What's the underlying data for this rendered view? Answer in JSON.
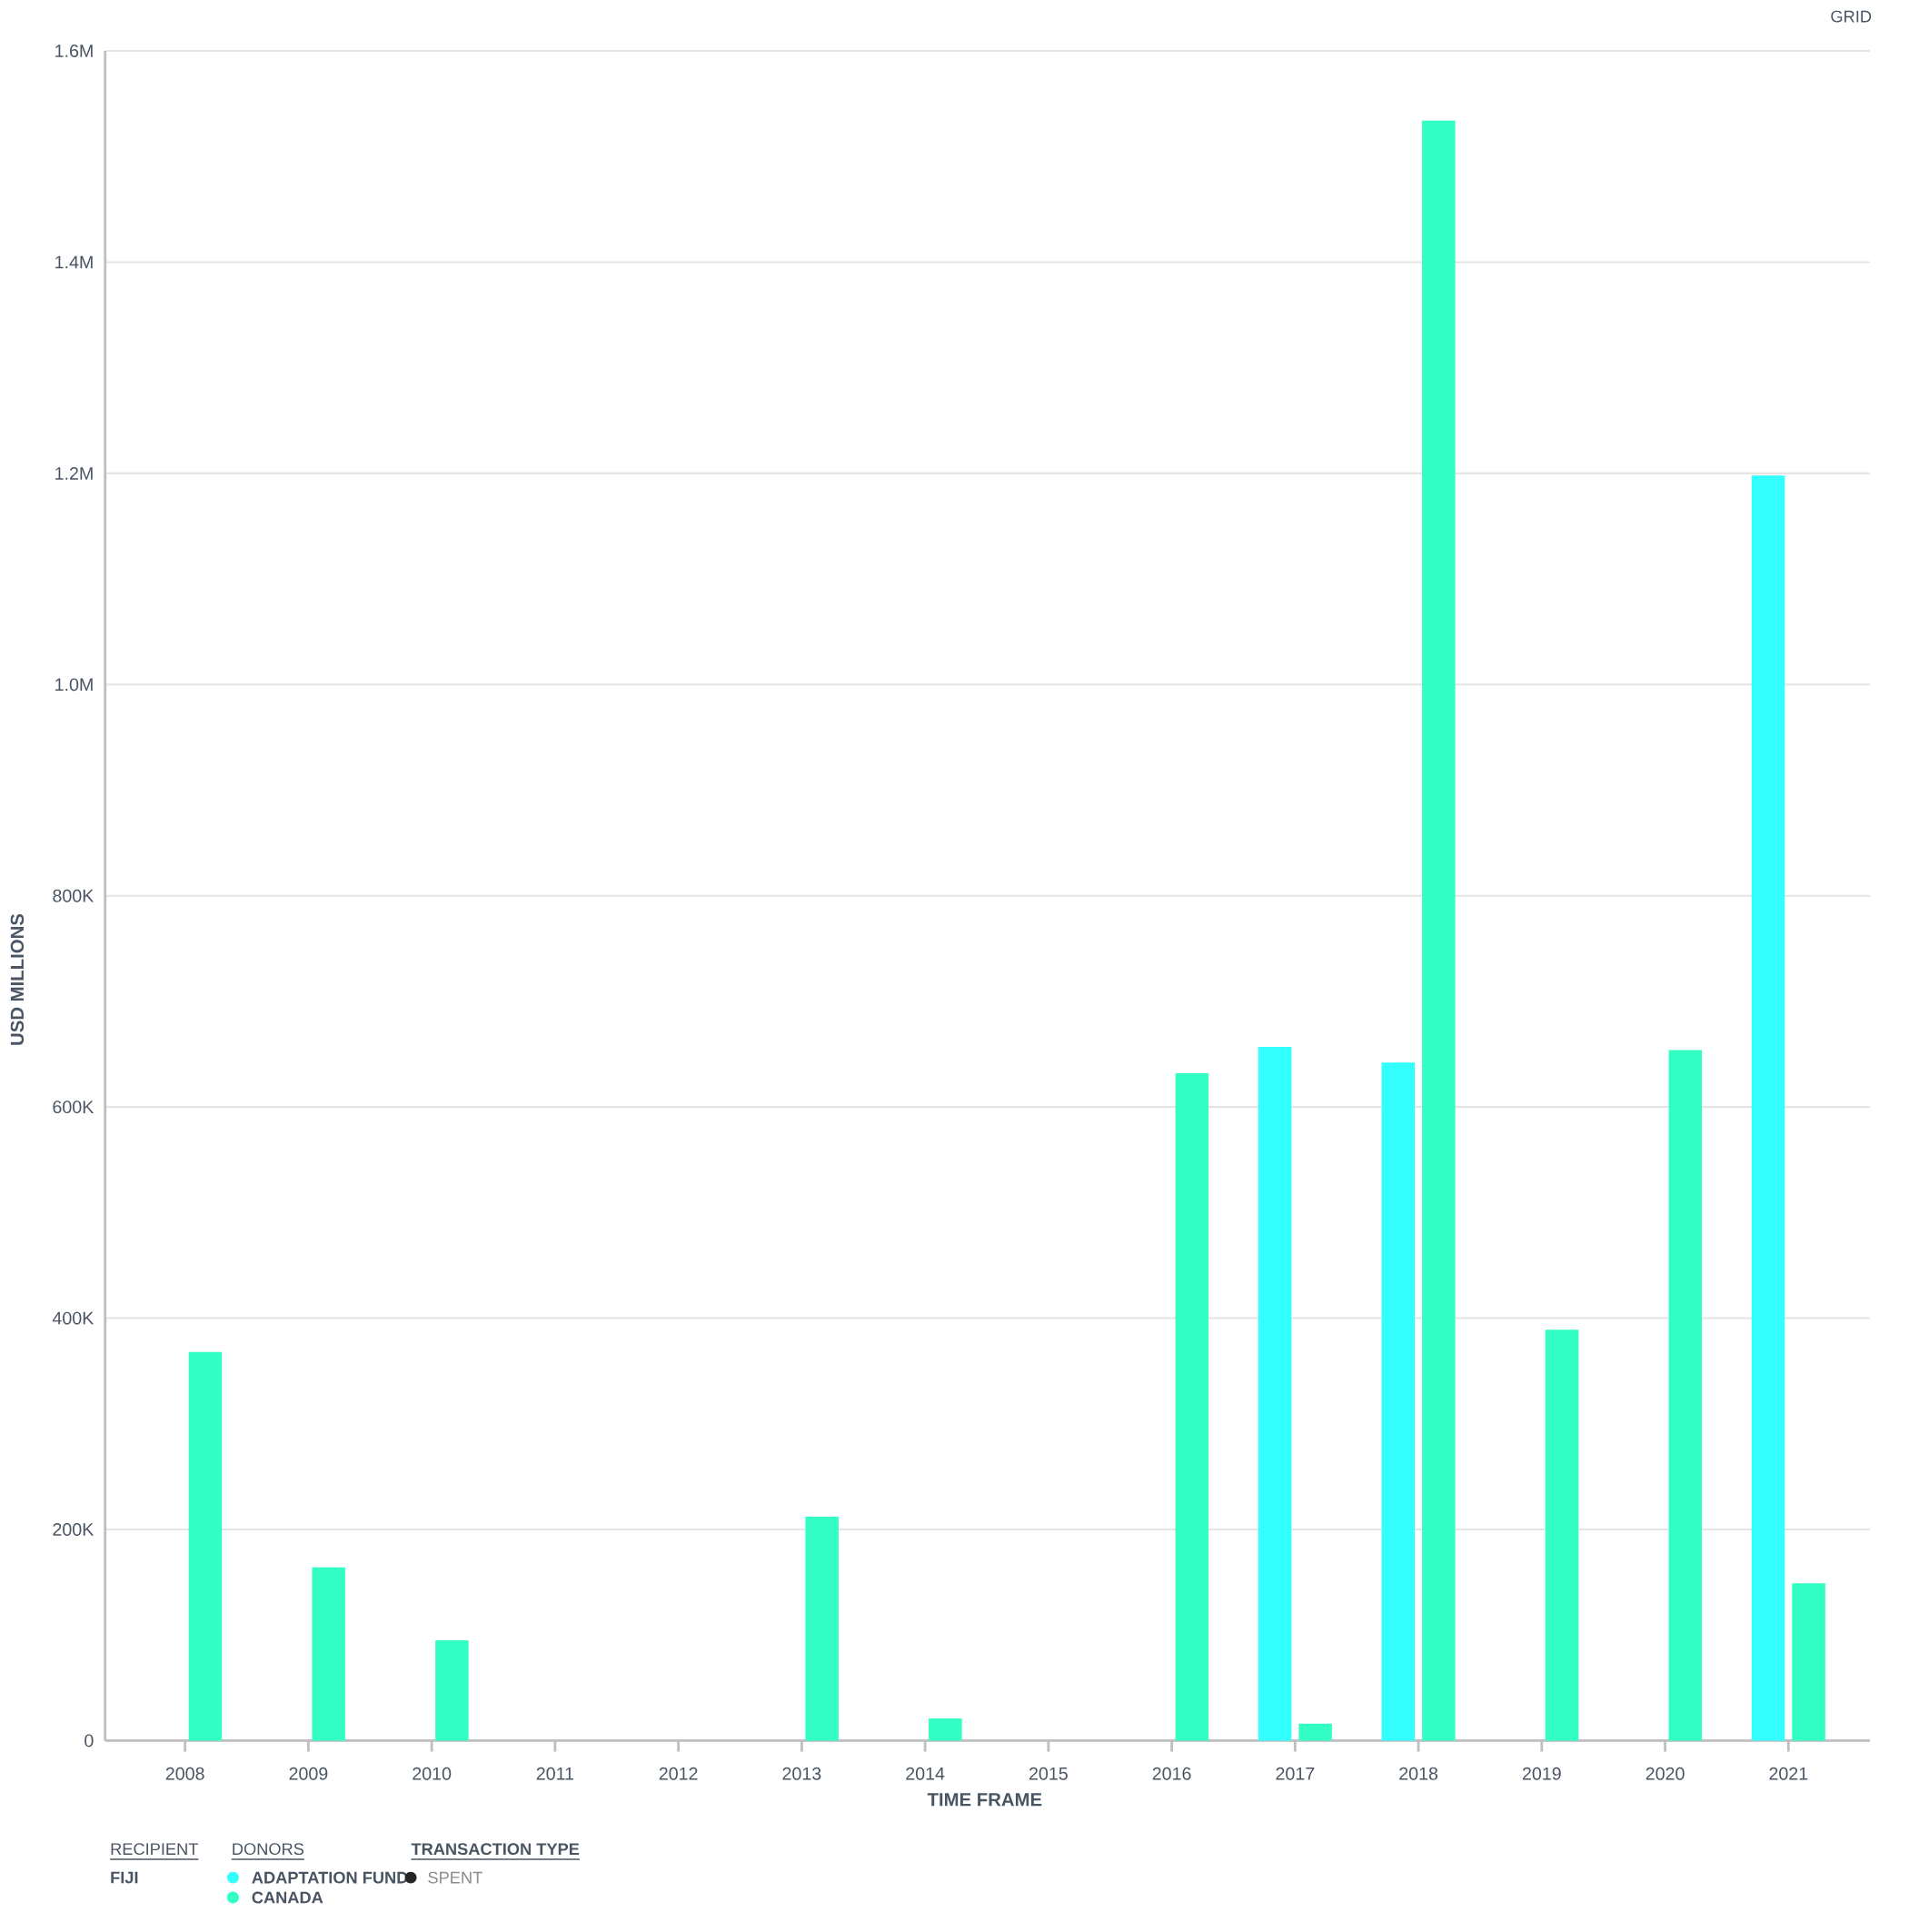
{
  "chart_data": {
    "type": "bar",
    "xlabel": "TIME FRAME",
    "ylabel": "USD MILLIONS",
    "legend_title": "DONORS",
    "categories": [
      "2008",
      "2009",
      "2010",
      "2011",
      "2012",
      "2013",
      "2014",
      "2015",
      "2016",
      "2017",
      "2018",
      "2019",
      "2020",
      "2021"
    ],
    "series": [
      {
        "name": "ADAPTATION FUND",
        "color": "#33ffff",
        "values": [
          null,
          null,
          null,
          null,
          null,
          null,
          null,
          null,
          null,
          657000,
          642000,
          null,
          null,
          1198000
        ]
      },
      {
        "name": "CANADA",
        "color": "#33ffc4",
        "values": [
          368000,
          164000,
          95000,
          null,
          null,
          212000,
          21000,
          null,
          632000,
          16000,
          1534000,
          389000,
          654000,
          149000
        ]
      }
    ],
    "ylim": [
      0,
      1600000
    ],
    "yticks": [
      0,
      {
        "value": 200000,
        "label": "200K"
      },
      {
        "value": 400000,
        "label": "400K"
      },
      {
        "value": 600000,
        "label": "600K"
      },
      {
        "value": 800000,
        "label": "800K"
      },
      {
        "value": 1000000,
        "label": "1.0M"
      },
      {
        "value": 1200000,
        "label": "1.2M"
      },
      {
        "value": 1400000,
        "label": "1.4M"
      },
      {
        "value": 1600000,
        "label": "1.6M"
      }
    ],
    "grid": "y",
    "legend": "bottom left",
    "annotations": [
      "RECIPIENT",
      "FIJI",
      "TRANSACTION TYPE",
      "SPENT",
      "GRID"
    ]
  }
}
